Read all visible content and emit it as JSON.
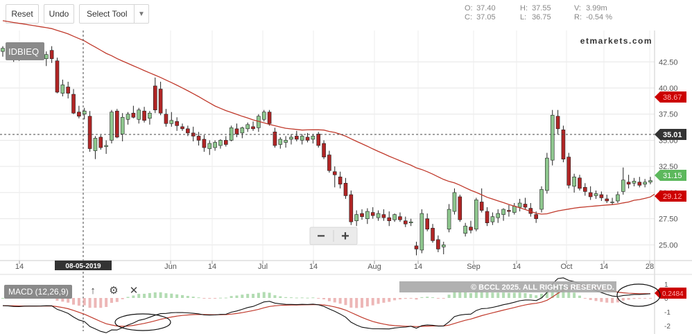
{
  "toolbar": {
    "reset_label": "Reset",
    "undo_label": "Undo",
    "select_tool_label": "Select Tool"
  },
  "ohlc": {
    "open_key": "O:",
    "open": "37.40",
    "close_key": "C:",
    "close": "37.05",
    "high_key": "H:",
    "high": "37.55",
    "low_key": "L:",
    "low": "36.75",
    "volume_key": "V:",
    "volume": "3.99m",
    "return_key": "R:",
    "return": "-0.54 %"
  },
  "brand": "etmarkets.com",
  "symbol": "IDBIEQ",
  "crosshair_date": "08-05-2019",
  "zoom": {
    "minus": "−",
    "plus": "+"
  },
  "macd": {
    "label": "MACD (12,26,9)",
    "copyright": "© BCCL 2025. ALL RIGHTS RESERVED.",
    "last_value": "0.2484",
    "y_ticks": [
      "1",
      "0",
      "-1",
      "-2"
    ]
  },
  "price_tags": {
    "ma_high": "38.67",
    "crosshair": "35.01",
    "last_price": "31.15",
    "ma_low": "29.12"
  },
  "colors": {
    "up": "#8ec78e",
    "down": "#b12525",
    "ma": "#c0392b",
    "crosshair_tag": "#333333",
    "last_tag": "#5cb85c",
    "ma_tag": "#cc0000"
  },
  "chart_data": [
    {
      "type": "candlestick",
      "title": "IDBIEQ",
      "x_tick_labels": [
        "14",
        "Jun",
        "14",
        "Jul",
        "14",
        "Aug",
        "14",
        "Sep",
        "14",
        "Oct",
        "14",
        "28"
      ],
      "y_tick_labels": [
        "42.50",
        "40.00",
        "37.50",
        "35.00",
        "32.50",
        "30.00",
        "27.50",
        "25.00"
      ],
      "ylim": [
        23.5,
        45.5
      ],
      "grid": true,
      "ohlc": [
        [
          43.5,
          44,
          43,
          43.8
        ],
        [
          43.6,
          44.2,
          43.3,
          43.4
        ],
        [
          43.3,
          43.8,
          42.5,
          42.9
        ],
        [
          43,
          43.6,
          42.6,
          43.2
        ],
        [
          43.2,
          43.8,
          42.8,
          43.5
        ],
        [
          43.6,
          44.2,
          43,
          43.2
        ],
        [
          43.3,
          43.8,
          42.8,
          43.1
        ],
        [
          43.5,
          43.9,
          42.7,
          43.0
        ],
        [
          42.8,
          43.5,
          42.1,
          43.2
        ],
        [
          43.6,
          44.0,
          42.4,
          42.8
        ],
        [
          42.6,
          42.9,
          39.5,
          39.6
        ],
        [
          39.5,
          40.8,
          39.2,
          40.3
        ],
        [
          40.1,
          40.6,
          39.0,
          39.5
        ],
        [
          39.4,
          39.9,
          37.5,
          37.6
        ],
        [
          37.7,
          38.3,
          37.1,
          37.3
        ],
        [
          37.5,
          38.1,
          37.0,
          37.8
        ],
        [
          37.3,
          37.8,
          33.9,
          34.2
        ],
        [
          34.0,
          35.4,
          33.2,
          35.2
        ],
        [
          35.3,
          35.5,
          34.1,
          34.3
        ],
        [
          34.4,
          35.0,
          33.7,
          34.5
        ],
        [
          35.0,
          37.9,
          34.7,
          37.7
        ],
        [
          37.8,
          38.0,
          35.2,
          35.3
        ],
        [
          35.6,
          37.6,
          34.9,
          37.2
        ],
        [
          37.0,
          37.7,
          36.5,
          37.5
        ],
        [
          37.6,
          38.3,
          37.1,
          37.2
        ],
        [
          37.0,
          38.1,
          36.6,
          37.9
        ],
        [
          37.8,
          38.2,
          36.7,
          36.9
        ],
        [
          37.1,
          37.8,
          36.5,
          37.6
        ],
        [
          40.2,
          41.0,
          37.6,
          37.9
        ],
        [
          39.9,
          40.6,
          37.4,
          37.6
        ],
        [
          37.5,
          38.0,
          36.3,
          36.6
        ],
        [
          36.6,
          37.7,
          36.3,
          36.9
        ],
        [
          36.8,
          37.2,
          35.9,
          36.4
        ],
        [
          36.3,
          36.6,
          35.9,
          36.1
        ],
        [
          36.1,
          36.4,
          35.4,
          35.7
        ],
        [
          35.7,
          36.3,
          34.9,
          35.4
        ],
        [
          35.4,
          35.8,
          34.5,
          35.0
        ],
        [
          35.1,
          35.5,
          33.9,
          34.3
        ],
        [
          34.2,
          35.0,
          33.6,
          34.7
        ],
        [
          34.3,
          35.0,
          34.0,
          34.8
        ],
        [
          34.5,
          35.1,
          34.2,
          35.0
        ],
        [
          35.0,
          35.4,
          34.4,
          34.6
        ],
        [
          35.0,
          36.4,
          34.9,
          36.2
        ],
        [
          36.1,
          36.6,
          35.3,
          35.6
        ],
        [
          35.7,
          36.3,
          35.2,
          36.2
        ],
        [
          36.1,
          36.7,
          35.8,
          36.5
        ],
        [
          36.3,
          36.8,
          35.9,
          36.1
        ],
        [
          36.2,
          37.5,
          35.8,
          37.3
        ],
        [
          37.0,
          37.9,
          36.8,
          37.7
        ],
        [
          37.7,
          37.9,
          36.4,
          36.6
        ],
        [
          35.8,
          36.2,
          34.3,
          34.5
        ],
        [
          34.6,
          35.3,
          34.2,
          35.1
        ],
        [
          34.8,
          35.4,
          34.3,
          35.0
        ],
        [
          35.1,
          35.6,
          34.6,
          35.3
        ],
        [
          35.4,
          35.9,
          34.9,
          35.1
        ],
        [
          35.0,
          35.6,
          34.6,
          35.4
        ],
        [
          35.3,
          35.7,
          34.8,
          35.0
        ],
        [
          35.1,
          35.6,
          34.7,
          35.4
        ],
        [
          35.6,
          35.8,
          34.3,
          34.5
        ],
        [
          34.7,
          35.0,
          33.2,
          33.4
        ],
        [
          33.6,
          34.0,
          31.9,
          32.1
        ],
        [
          32.0,
          32.5,
          30.5,
          31.7
        ],
        [
          31.5,
          32.0,
          30.4,
          30.8
        ],
        [
          30.9,
          31.4,
          29.4,
          29.7
        ],
        [
          29.8,
          30.2,
          26.9,
          27.2
        ],
        [
          27.3,
          28.3,
          26.8,
          27.9
        ],
        [
          28.0,
          28.4,
          27.4,
          27.7
        ],
        [
          27.5,
          28.5,
          27.0,
          28.2
        ],
        [
          28.1,
          28.6,
          27.5,
          27.8
        ],
        [
          27.6,
          28.3,
          27.3,
          28.0
        ],
        [
          27.9,
          28.4,
          27.3,
          27.6
        ],
        [
          27.6,
          28.2,
          26.8,
          27.3
        ],
        [
          27.4,
          28.0,
          27.2,
          27.9
        ],
        [
          27.7,
          28.1,
          27.2,
          27.4
        ],
        [
          27.3,
          27.7,
          26.7,
          27.0
        ],
        [
          27.1,
          27.5,
          26.8,
          27.2
        ],
        [
          24.9,
          25.3,
          24.0,
          24.6
        ],
        [
          24.5,
          28.4,
          24.2,
          28.0
        ],
        [
          27.5,
          28.0,
          26.3,
          26.5
        ],
        [
          26.6,
          27.0,
          25.2,
          25.4
        ],
        [
          25.5,
          25.9,
          24.3,
          24.6
        ],
        [
          24.8,
          25.3,
          24.1,
          25.0
        ],
        [
          26.5,
          28.9,
          26.2,
          28.4
        ],
        [
          28.2,
          30.4,
          27.9,
          30.0
        ],
        [
          29.6,
          29.8,
          27.2,
          27.4
        ],
        [
          26.1,
          27.1,
          25.8,
          26.8
        ],
        [
          26.7,
          27.3,
          26.1,
          26.4
        ],
        [
          26.5,
          29.5,
          26.3,
          29.3
        ],
        [
          29.1,
          30.4,
          28.1,
          28.3
        ],
        [
          28.2,
          28.6,
          26.8,
          27.1
        ],
        [
          27.2,
          28.1,
          26.9,
          27.7
        ],
        [
          27.6,
          28.4,
          27.1,
          28.0
        ],
        [
          27.9,
          28.5,
          27.3,
          28.4
        ],
        [
          28.3,
          28.8,
          27.7,
          28.2
        ],
        [
          28.1,
          29.0,
          27.9,
          28.7
        ],
        [
          28.6,
          29.4,
          28.2,
          29.0
        ],
        [
          28.9,
          29.5,
          28.4,
          28.6
        ],
        [
          28.5,
          29.0,
          27.7,
          28.0
        ],
        [
          27.9,
          28.2,
          27.1,
          27.5
        ],
        [
          28.4,
          30.6,
          28.1,
          30.3
        ],
        [
          30.2,
          33.8,
          29.9,
          33.3
        ],
        [
          33.1,
          37.9,
          32.6,
          37.4
        ],
        [
          37.3,
          37.9,
          35.6,
          36.1
        ],
        [
          36.0,
          36.4,
          32.9,
          33.2
        ],
        [
          33.4,
          33.8,
          30.4,
          30.7
        ],
        [
          30.6,
          31.8,
          30.0,
          31.5
        ],
        [
          31.4,
          31.7,
          30.2,
          30.4
        ],
        [
          30.5,
          30.9,
          29.7,
          30.1
        ],
        [
          30.0,
          30.6,
          29.3,
          29.6
        ],
        [
          29.7,
          30.2,
          29.4,
          29.9
        ],
        [
          29.8,
          30.1,
          29.2,
          29.5
        ],
        [
          29.4,
          29.8,
          29.0,
          29.2
        ],
        [
          29.1,
          29.5,
          28.8,
          29.1
        ],
        [
          29.2,
          30.1,
          29.0,
          29.8
        ],
        [
          30.1,
          32.4,
          29.8,
          31.2
        ],
        [
          31.0,
          31.7,
          30.4,
          30.8
        ],
        [
          30.9,
          31.4,
          30.6,
          31.1
        ],
        [
          31.0,
          31.5,
          30.5,
          30.7
        ],
        [
          30.8,
          31.3,
          30.5,
          31.0
        ],
        [
          31.0,
          31.5,
          30.8,
          31.15
        ]
      ]
    },
    {
      "type": "line",
      "title": "MACD (12,26,9)",
      "y_tick_labels": [
        "1",
        "0",
        "-1",
        "-2"
      ],
      "ylim": [
        -2.4,
        1.6
      ]
    }
  ]
}
